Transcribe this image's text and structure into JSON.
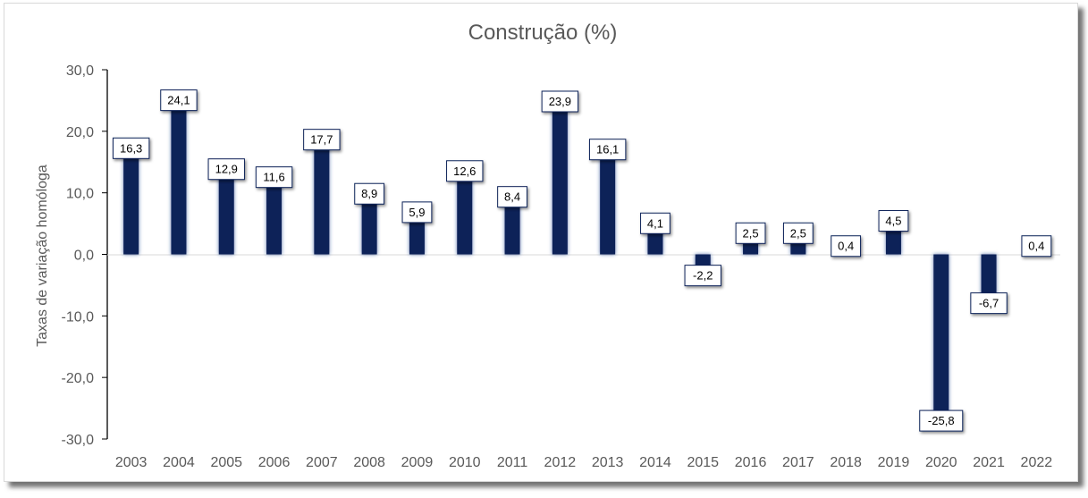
{
  "chart_data": {
    "type": "bar",
    "title": "Construção (%)",
    "ylabel": "Taxas de variação homóloga",
    "xlabel": "",
    "categories": [
      "2003",
      "2004",
      "2005",
      "2006",
      "2007",
      "2008",
      "2009",
      "2010",
      "2011",
      "2012",
      "2013",
      "2014",
      "2015",
      "2016",
      "2017",
      "2018",
      "2019",
      "2020",
      "2021",
      "2022"
    ],
    "values": [
      16.3,
      24.1,
      12.9,
      11.6,
      17.7,
      8.9,
      5.9,
      12.6,
      8.4,
      23.9,
      16.1,
      4.1,
      -2.2,
      2.5,
      2.5,
      0.4,
      4.5,
      -25.8,
      -6.7,
      0.4
    ],
    "data_labels": [
      "16,3",
      "24,1",
      "12,9",
      "11,6",
      "17,7",
      "8,9",
      "5,9",
      "12,6",
      "8,4",
      "23,9",
      "16,1",
      "4,1",
      "-2,2",
      "2,5",
      "2,5",
      "0,4",
      "4,5",
      "-25,8",
      "-6,7",
      "0,4"
    ],
    "ylim": [
      -30,
      30
    ],
    "yticks": [
      30,
      20,
      10,
      0,
      -10,
      -20,
      -30
    ],
    "ytick_labels": [
      "30,0",
      "20,0",
      "10,0",
      "0,0",
      "-10,0",
      "-20,0",
      "-30,0"
    ],
    "grid": false,
    "bar_color": "#0d2259"
  }
}
